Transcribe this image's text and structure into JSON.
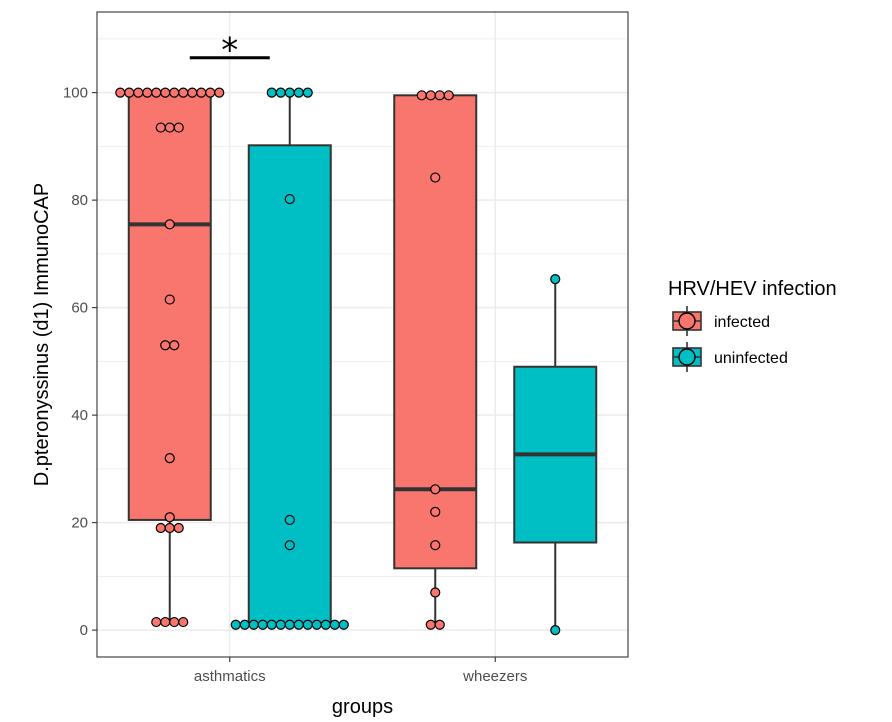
{
  "chart_data": {
    "type": "boxplot",
    "xlabel": "groups",
    "ylabel": "D.pteronyssinus (d1) ImmunoCAP",
    "categories": [
      "asthmatics",
      "wheezers"
    ],
    "ylim": [
      -5,
      115
    ],
    "yticks": [
      0,
      20,
      40,
      60,
      80,
      100
    ],
    "grid": true,
    "legend": {
      "title": "HRV/HEV infection",
      "position": "right"
    },
    "series": [
      {
        "name": "infected",
        "color": "#F8766D",
        "boxes": [
          {
            "category": "asthmatics",
            "whisker_low": 1.5,
            "q1": 20.5,
            "median": 75.5,
            "q3": 100,
            "whisker_high": 100
          },
          {
            "category": "wheezers",
            "whisker_low": 1,
            "q1": 11.5,
            "median": 26.2,
            "q3": 99.5,
            "whisker_high": 99.5
          }
        ],
        "points": [
          {
            "category": "asthmatics",
            "values": [
              100,
              100,
              100,
              100,
              100,
              100,
              100,
              100,
              100,
              100,
              100,
              100,
              93.5,
              93.5,
              93.5,
              75.5,
              61.5,
              53,
              53,
              32,
              21,
              19,
              19,
              19,
              1.5,
              1.5,
              1.5,
              1.5
            ]
          },
          {
            "category": "wheezers",
            "values": [
              99.5,
              99.5,
              99.5,
              99.5,
              84.2,
              26.2,
              22,
              15.8,
              7,
              1,
              1
            ]
          }
        ]
      },
      {
        "name": "uninfected",
        "color": "#00BFC4",
        "boxes": [
          {
            "category": "asthmatics",
            "whisker_low": 1,
            "q1": 1,
            "median": 1,
            "q3": 90.2,
            "whisker_high": 100
          },
          {
            "category": "wheezers",
            "whisker_low": 0,
            "q1": 16.3,
            "median": 32.7,
            "q3": 49,
            "whisker_high": 65.3
          }
        ],
        "points": [
          {
            "category": "asthmatics",
            "values": [
              100,
              100,
              100,
              100,
              100,
              80.2,
              20.5,
              15.8,
              1,
              1,
              1,
              1,
              1,
              1,
              1,
              1,
              1,
              1,
              1,
              1,
              1
            ]
          },
          {
            "category": "wheezers",
            "values": [
              65.3,
              0
            ]
          }
        ]
      }
    ],
    "annotations": [
      {
        "text": "*",
        "category": "asthmatics",
        "y": 106.5,
        "type": "significance"
      }
    ]
  }
}
